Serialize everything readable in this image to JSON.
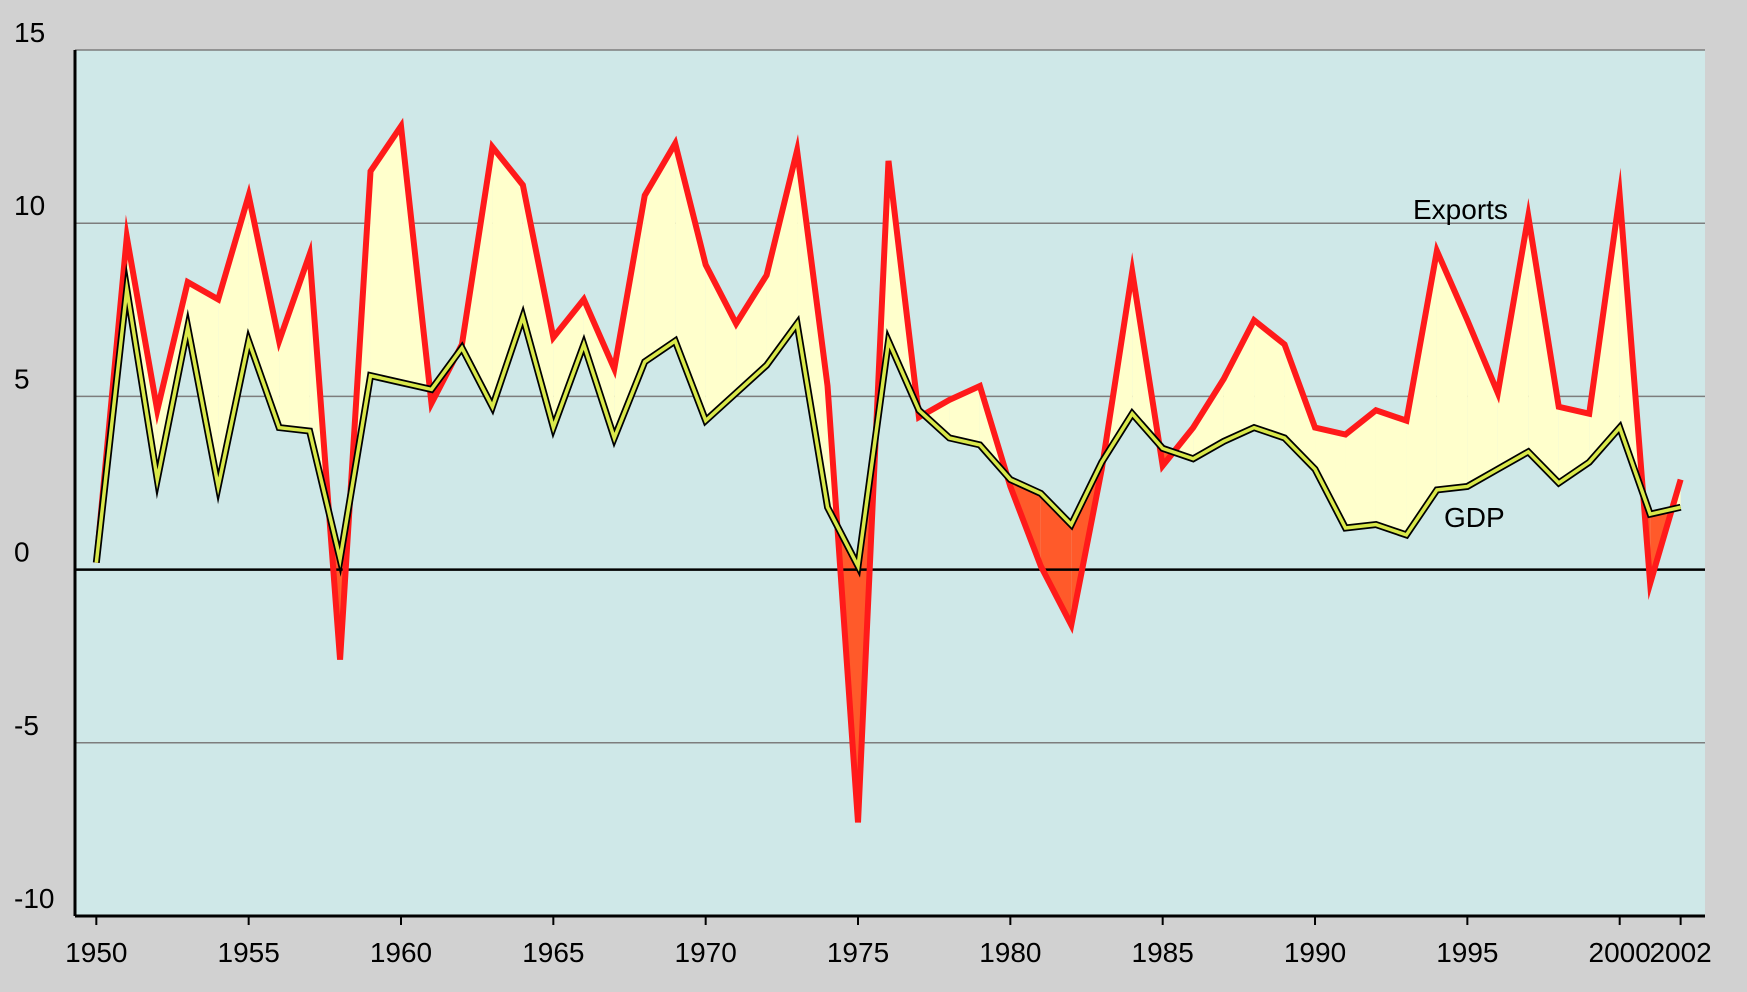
{
  "chart_data": {
    "type": "line",
    "title": "",
    "xlabel": "",
    "ylabel": "",
    "xlim": [
      1949.3,
      2002.8
    ],
    "ylim": [
      -10,
      15
    ],
    "x_ticks": [
      1950,
      1955,
      1960,
      1965,
      1970,
      1975,
      1980,
      1985,
      1990,
      1995,
      2000,
      2002
    ],
    "y_ticks": [
      -10,
      -5,
      0,
      5,
      10,
      15
    ],
    "grid": true,
    "legend": "none",
    "x": [
      1950,
      1951,
      1952,
      1953,
      1954,
      1955,
      1956,
      1957,
      1958,
      1959,
      1960,
      1961,
      1962,
      1963,
      1964,
      1965,
      1966,
      1967,
      1968,
      1969,
      1970,
      1971,
      1972,
      1973,
      1974,
      1975,
      1976,
      1977,
      1978,
      1979,
      1980,
      1981,
      1982,
      1983,
      1984,
      1985,
      1986,
      1987,
      1988,
      1989,
      1990,
      1991,
      1992,
      1993,
      1994,
      1995,
      1996,
      1997,
      1998,
      1999,
      2000,
      2001,
      2002
    ],
    "series": [
      {
        "name": "Exports",
        "color": "#ff1a1a",
        "values": [
          0.2,
          9.6,
          4.6,
          8.3,
          7.8,
          10.8,
          6.6,
          9.1,
          -2.6,
          11.5,
          12.8,
          4.8,
          6.5,
          12.2,
          11.1,
          6.7,
          7.8,
          5.8,
          10.8,
          12.3,
          8.8,
          7.1,
          8.5,
          12.1,
          5.3,
          -7.3,
          11.8,
          4.4,
          4.9,
          5.3,
          2.4,
          0.1,
          -1.6,
          2.9,
          8.6,
          3.0,
          4.1,
          5.5,
          7.2,
          6.5,
          4.1,
          3.9,
          4.6,
          4.3,
          9.2,
          7.2,
          5.1,
          10.2,
          4.7,
          4.5,
          10.8,
          -0.4,
          2.6
        ]
      },
      {
        "name": "GDP",
        "color": "#d9e84a",
        "values": [
          0.2,
          8.1,
          2.6,
          7.0,
          2.4,
          6.6,
          4.1,
          4.0,
          0.3,
          5.6,
          5.4,
          5.2,
          6.4,
          4.7,
          7.3,
          4.1,
          6.5,
          3.8,
          6.0,
          6.6,
          4.3,
          5.1,
          5.9,
          7.1,
          1.8,
          0.1,
          6.6,
          4.6,
          3.8,
          3.6,
          2.6,
          2.2,
          1.3,
          3.1,
          4.5,
          3.5,
          3.2,
          3.7,
          4.1,
          3.8,
          2.9,
          1.2,
          1.3,
          1.0,
          2.3,
          2.4,
          2.9,
          3.4,
          2.5,
          3.1,
          4.1,
          1.6,
          1.8
        ]
      }
    ],
    "fills": {
      "above_color": "#ffffcc",
      "below_color": "#ff5a2a",
      "plot_background": "#cfe8e8",
      "page_background": "#d1d1d1"
    }
  }
}
